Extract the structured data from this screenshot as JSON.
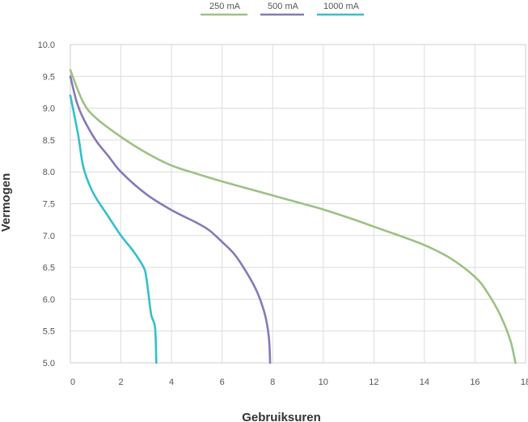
{
  "chart_data": {
    "type": "line",
    "xlabel": "Gebruiksuren",
    "ylabel": "Vermogen",
    "xlim": [
      0,
      18
    ],
    "ylim": [
      5.0,
      10.0
    ],
    "x_ticks": [
      "0",
      "2",
      "4",
      "6",
      "8",
      "10",
      "12",
      "14",
      "16",
      "18"
    ],
    "y_ticks": [
      "10.0",
      "9.5",
      "9.0",
      "8.5",
      "8.0",
      "7.5",
      "7.0",
      "6.5",
      "6.0",
      "5.5",
      "5.0"
    ],
    "grid": true,
    "legend_position": "top-center",
    "series": [
      {
        "name": "250 mA",
        "color": "#9dc183",
        "points": [
          [
            0,
            9.6
          ],
          [
            0.5,
            9.1
          ],
          [
            1,
            8.85
          ],
          [
            2,
            8.55
          ],
          [
            3,
            8.3
          ],
          [
            4,
            8.1
          ],
          [
            5,
            7.97
          ],
          [
            6,
            7.85
          ],
          [
            7,
            7.74
          ],
          [
            8,
            7.63
          ],
          [
            9,
            7.52
          ],
          [
            10,
            7.41
          ],
          [
            11,
            7.28
          ],
          [
            12,
            7.14
          ],
          [
            13,
            7.0
          ],
          [
            14,
            6.85
          ],
          [
            15,
            6.65
          ],
          [
            16,
            6.35
          ],
          [
            16.5,
            6.1
          ],
          [
            17,
            5.75
          ],
          [
            17.4,
            5.35
          ],
          [
            17.6,
            5.0
          ]
        ]
      },
      {
        "name": "500 mA",
        "color": "#8878b8",
        "points": [
          [
            0,
            9.5
          ],
          [
            0.25,
            9.1
          ],
          [
            0.5,
            8.85
          ],
          [
            1,
            8.5
          ],
          [
            1.5,
            8.25
          ],
          [
            2,
            8.0
          ],
          [
            3,
            7.65
          ],
          [
            4,
            7.4
          ],
          [
            5,
            7.2
          ],
          [
            5.5,
            7.08
          ],
          [
            6,
            6.9
          ],
          [
            6.5,
            6.7
          ],
          [
            7,
            6.4
          ],
          [
            7.4,
            6.1
          ],
          [
            7.7,
            5.75
          ],
          [
            7.85,
            5.4
          ],
          [
            7.9,
            5.0
          ]
        ]
      },
      {
        "name": "1000 mA",
        "color": "#33bfcc",
        "points": [
          [
            0,
            9.2
          ],
          [
            0.3,
            8.6
          ],
          [
            0.5,
            8.1
          ],
          [
            0.75,
            7.8
          ],
          [
            1,
            7.6
          ],
          [
            1.5,
            7.3
          ],
          [
            2,
            7.0
          ],
          [
            2.5,
            6.75
          ],
          [
            2.9,
            6.5
          ],
          [
            3.0,
            6.35
          ],
          [
            3.1,
            6.05
          ],
          [
            3.2,
            5.75
          ],
          [
            3.35,
            5.55
          ],
          [
            3.4,
            5.0
          ]
        ]
      }
    ]
  }
}
